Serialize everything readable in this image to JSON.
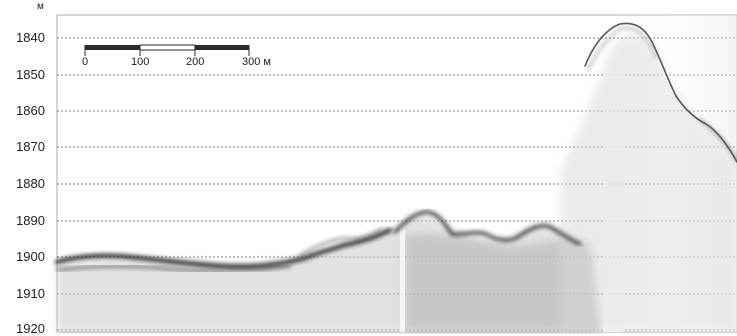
{
  "depth_axis": {
    "unit": "м",
    "ticks": [
      "1840",
      "1850",
      "1860",
      "1870",
      "1880",
      "1890",
      "1900",
      "1910",
      "1920"
    ]
  },
  "scale_bar": {
    "labels": [
      "0",
      "100",
      "200",
      "300 м"
    ]
  }
}
